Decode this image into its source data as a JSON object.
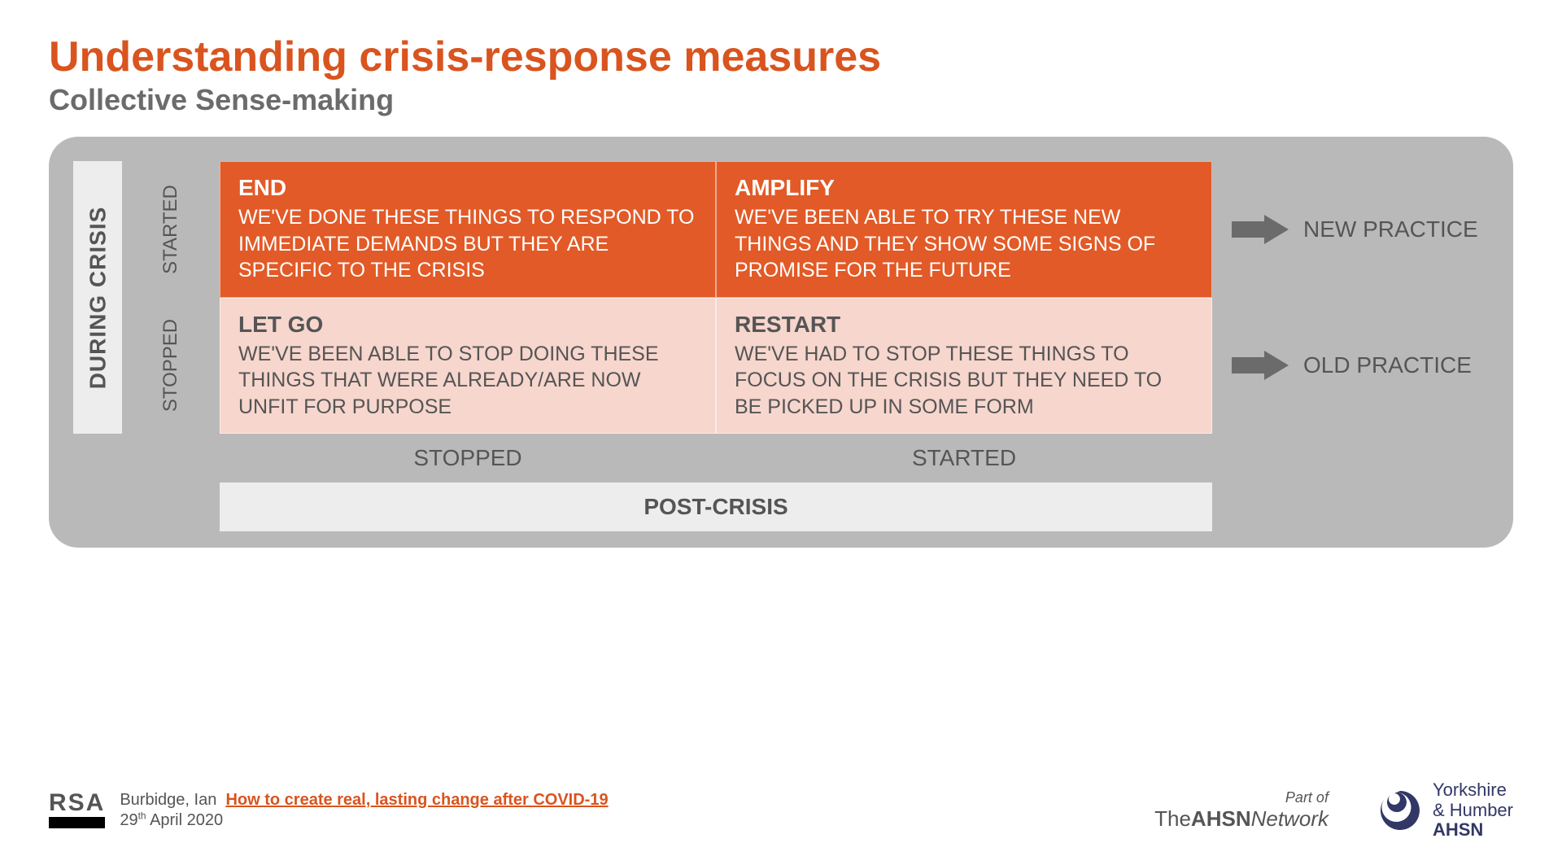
{
  "colors": {
    "accent": "#d9541e",
    "subtitle": "#6b6b6b",
    "panel_bg": "#b9b9b9",
    "axis_bg": "#ededed",
    "cell_dark_bg": "#e25a27",
    "cell_light_bg": "#f6d6cd",
    "arrow_fill": "#6b6b6b",
    "yh_swirl": "#323766"
  },
  "title": "Understanding crisis-response measures",
  "subtitle": "Collective Sense-making",
  "matrix": {
    "y_axis_main": "DURING CRISIS",
    "y_axis_top": "STARTED",
    "y_axis_bottom": "STOPPED",
    "x_axis_main": "POST-CRISIS",
    "x_axis_left": "STOPPED",
    "x_axis_right": "STARTED",
    "right_top": "NEW PRACTICE",
    "right_bottom": "OLD PRACTICE",
    "cells": {
      "top_left": {
        "title": "END",
        "body": "WE'VE DONE THESE THINGS TO RESPOND TO IMMEDIATE DEMANDS BUT THEY ARE SPECIFIC TO THE CRISIS"
      },
      "top_right": {
        "title": "AMPLIFY",
        "body": "WE'VE BEEN ABLE TO TRY THESE NEW THINGS AND THEY SHOW SOME SIGNS OF PROMISE FOR THE FUTURE"
      },
      "bot_left": {
        "title": "LET GO",
        "body": "WE'VE BEEN ABLE TO STOP DOING THESE THINGS THAT WERE ALREADY/ARE NOW UNFIT FOR PURPOSE"
      },
      "bot_right": {
        "title": "RESTART",
        "body": "WE'VE HAD TO STOP THESE THINGS TO FOCUS ON THE CRISIS BUT THEY NEED TO BE PICKED UP IN SOME FORM"
      }
    }
  },
  "footer": {
    "rsa": "RSA",
    "author": "Burbidge, Ian",
    "link_text": "How to create real, lasting change after COVID-19",
    "date_html": "29<sup>th</sup> April 2020",
    "ahsn_partof": "Part of",
    "ahsn_the": "The",
    "ahsn_bold": "AHSN",
    "ahsn_net": "Network",
    "yh_line1": "Yorkshire",
    "yh_line2": "& Humber",
    "yh_line3": "AHSN"
  }
}
